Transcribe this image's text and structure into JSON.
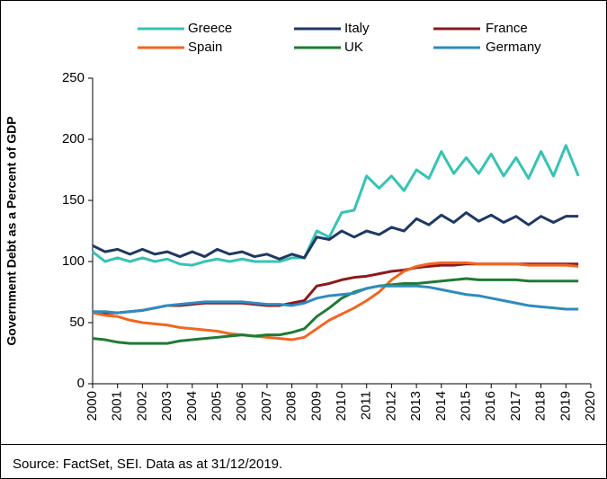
{
  "chart_data": {
    "type": "line",
    "y_label": "Government  Debt as a Percent of GDP",
    "source": "Source: FactSet, SEI. Data as at 31/12/2019.",
    "x": [
      2000,
      2000.5,
      2001,
      2001.5,
      2002,
      2002.5,
      2003,
      2003.5,
      2004,
      2004.5,
      2005,
      2005.5,
      2006,
      2006.5,
      2007,
      2007.5,
      2008,
      2008.5,
      2009,
      2009.5,
      2010,
      2010.5,
      2011,
      2011.5,
      2012,
      2012.5,
      2013,
      2013.5,
      2014,
      2014.5,
      2015,
      2015.5,
      2016,
      2016.5,
      2017,
      2017.5,
      2018,
      2018.5,
      2019,
      2019.5,
      2020
    ],
    "xlim": [
      2000,
      2020
    ],
    "xticks": [
      2000,
      2001,
      2002,
      2003,
      2004,
      2005,
      2006,
      2007,
      2008,
      2009,
      2010,
      2011,
      2012,
      2013,
      2014,
      2015,
      2016,
      2017,
      2018,
      2019,
      2020
    ],
    "ylim": [
      0,
      250
    ],
    "yticks": [
      0,
      50,
      100,
      150,
      200,
      250
    ],
    "grid": false,
    "series": [
      {
        "name": "Greece",
        "color": "#35c3b4",
        "values": [
          108,
          100,
          103,
          100,
          103,
          100,
          102,
          98,
          97,
          100,
          102,
          100,
          102,
          100,
          100,
          100,
          103,
          103,
          125,
          120,
          140,
          142,
          170,
          160,
          170,
          158,
          175,
          168,
          190,
          172,
          185,
          172,
          188,
          170,
          185,
          168,
          190,
          170,
          195,
          170,
          null
        ]
      },
      {
        "name": "Italy",
        "color": "#1f3864",
        "values": [
          113,
          108,
          110,
          106,
          110,
          106,
          108,
          104,
          108,
          104,
          110,
          106,
          108,
          104,
          106,
          102,
          106,
          103,
          120,
          118,
          125,
          120,
          125,
          122,
          128,
          125,
          135,
          130,
          138,
          132,
          140,
          133,
          138,
          132,
          137,
          130,
          137,
          132,
          137,
          137,
          null
        ]
      },
      {
        "name": "France",
        "color": "#8b1a1a",
        "values": [
          58,
          58,
          58,
          59,
          60,
          62,
          64,
          64,
          65,
          66,
          66,
          66,
          66,
          65,
          64,
          64,
          66,
          68,
          80,
          82,
          85,
          87,
          88,
          90,
          92,
          93,
          95,
          96,
          97,
          97,
          98,
          98,
          98,
          98,
          98,
          98,
          98,
          98,
          98,
          98,
          null
        ]
      },
      {
        "name": "Spain",
        "color": "#f26522",
        "values": [
          58,
          56,
          55,
          52,
          50,
          49,
          48,
          46,
          45,
          44,
          43,
          41,
          40,
          39,
          38,
          37,
          36,
          38,
          45,
          52,
          57,
          62,
          68,
          75,
          85,
          92,
          96,
          98,
          99,
          99,
          99,
          98,
          98,
          98,
          98,
          97,
          97,
          97,
          97,
          96,
          null
        ]
      },
      {
        "name": "UK",
        "color": "#1e7b34",
        "values": [
          37,
          36,
          34,
          33,
          33,
          33,
          33,
          35,
          36,
          37,
          38,
          39,
          40,
          39,
          40,
          40,
          42,
          45,
          55,
          62,
          70,
          75,
          78,
          80,
          81,
          82,
          82,
          83,
          84,
          85,
          86,
          85,
          85,
          85,
          85,
          84,
          84,
          84,
          84,
          84,
          null
        ]
      },
      {
        "name": "Germany",
        "color": "#2e8bc0",
        "values": [
          59,
          59,
          58,
          59,
          60,
          62,
          64,
          65,
          66,
          67,
          67,
          67,
          67,
          66,
          65,
          65,
          64,
          66,
          70,
          72,
          73,
          74,
          78,
          80,
          80,
          80,
          80,
          79,
          77,
          75,
          73,
          72,
          70,
          68,
          66,
          64,
          63,
          62,
          61,
          61,
          null
        ]
      }
    ]
  }
}
